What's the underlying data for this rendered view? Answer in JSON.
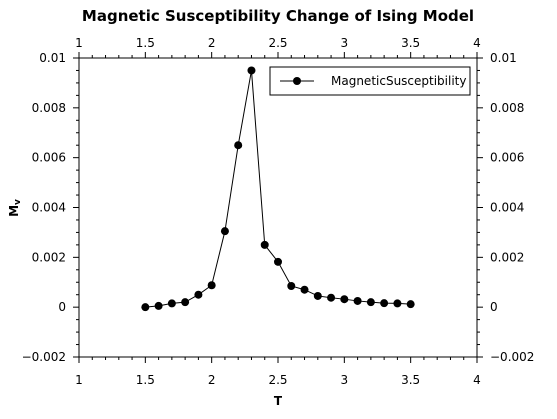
{
  "chart_data": {
    "type": "line",
    "title": "Magnetic Susceptibility Change of Ising Model",
    "xlabel": "T",
    "ylabel_main": "M",
    "ylabel_sub": "v",
    "xlim": [
      1,
      4
    ],
    "ylim": [
      -0.002,
      0.01
    ],
    "x_ticks": [
      1,
      1.5,
      2,
      2.5,
      3,
      3.5,
      4
    ],
    "x_tick_labels": [
      "1",
      "1.5",
      "2",
      "2.5",
      "3",
      "3.5",
      "4"
    ],
    "y_ticks": [
      -0.002,
      0,
      0.002,
      0.004,
      0.006,
      0.008,
      0.01
    ],
    "y_tick_labels": [
      "−0.002",
      "0",
      "0.002",
      "0.004",
      "0.006",
      "0.008",
      "0.01"
    ],
    "grid": false,
    "legend_position": "top-right",
    "series": [
      {
        "name": "MagneticSusceptibility",
        "color": "#000000",
        "x": [
          1.5,
          1.6,
          1.7,
          1.8,
          1.9,
          2.0,
          2.1,
          2.2,
          2.3,
          2.4,
          2.5,
          2.6,
          2.7,
          2.8,
          2.9,
          3.0,
          3.1,
          3.2,
          3.3,
          3.4,
          3.5
        ],
        "y": [
          0.0,
          5e-05,
          0.00015,
          0.0002,
          0.0005,
          0.00088,
          0.00305,
          0.0065,
          0.0095,
          0.0025,
          0.00182,
          0.00085,
          0.0007,
          0.00045,
          0.00038,
          0.00032,
          0.00025,
          0.0002,
          0.00016,
          0.00015,
          0.00012
        ]
      }
    ]
  }
}
